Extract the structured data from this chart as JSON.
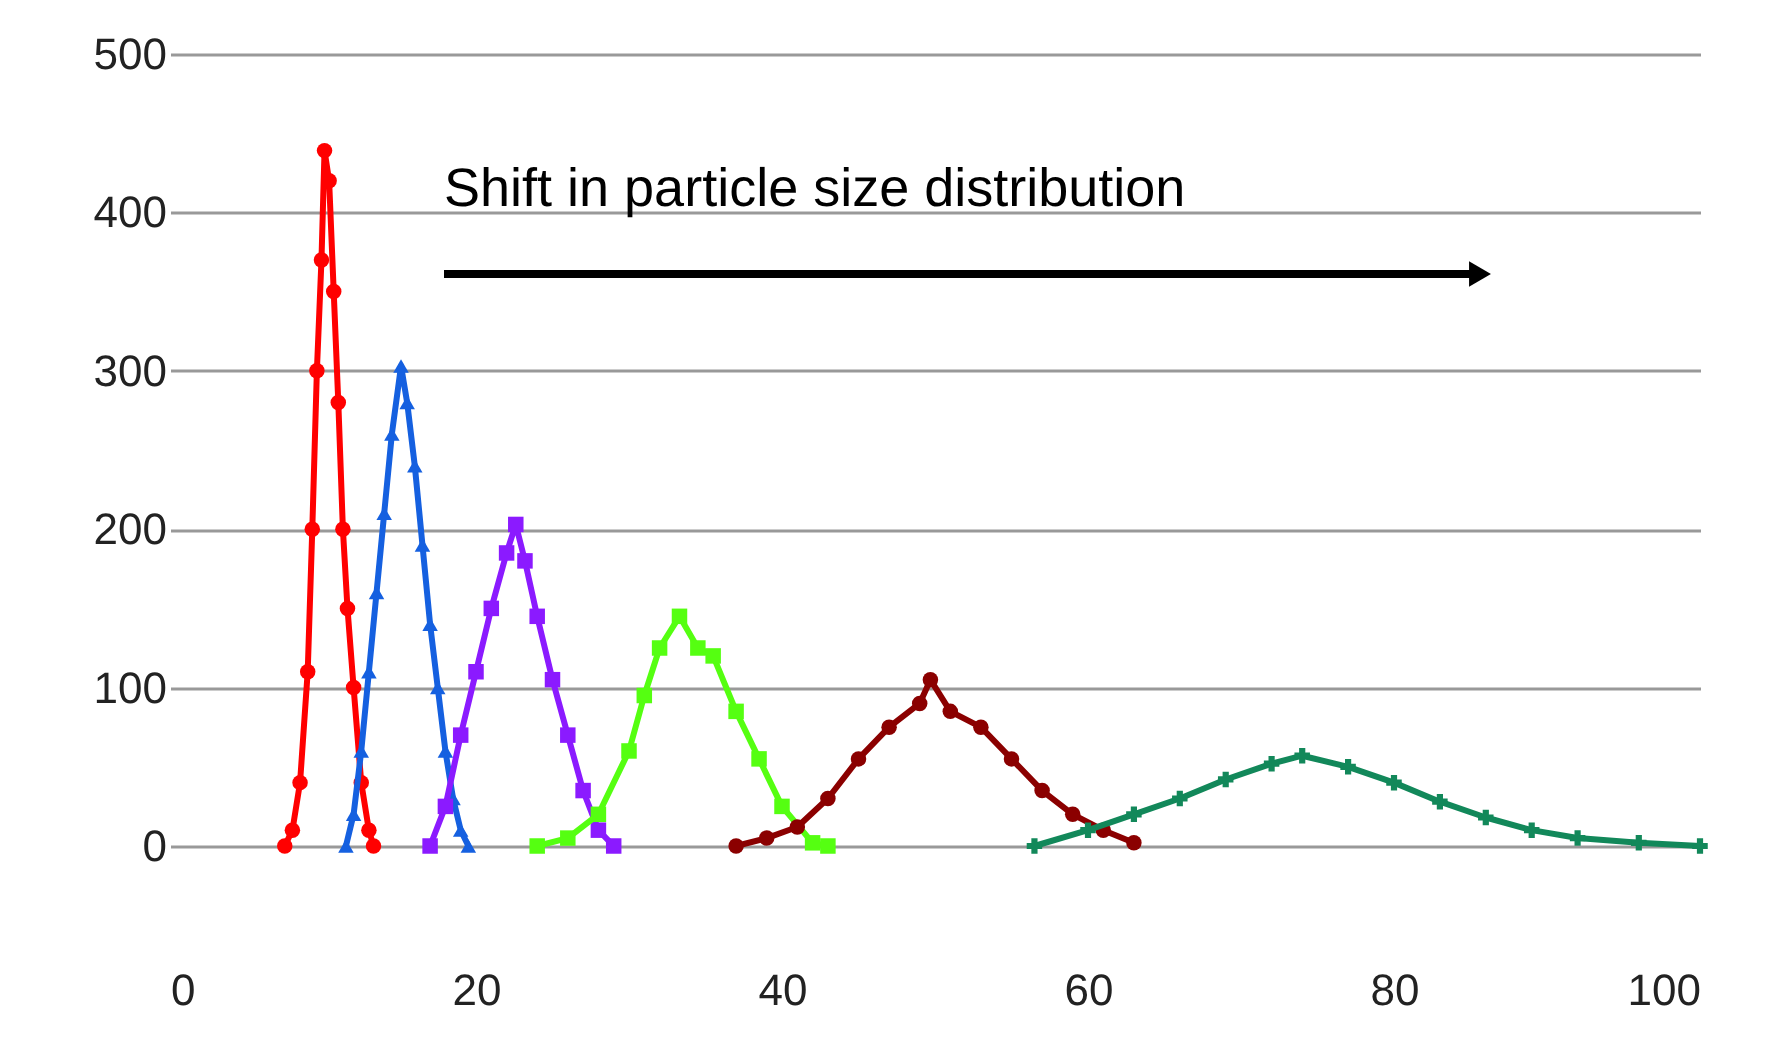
{
  "chart_data": {
    "type": "line",
    "xlim": [
      0,
      100
    ],
    "xticks": [
      0,
      20,
      40,
      60,
      80,
      100
    ],
    "ylim": [
      0,
      500
    ],
    "yticks": [
      0,
      100,
      200,
      300,
      400,
      500
    ],
    "grid": "y",
    "line_style": "solid",
    "annotations": [
      "Shift in particle size distribution"
    ],
    "series": [
      {
        "color": "#ff0000",
        "marker": "circle",
        "x": [
          7.5,
          8,
          8.5,
          9,
          9.3,
          9.6,
          9.9,
          10.1,
          10.4,
          10.7,
          11,
          11.3,
          11.6,
          12,
          12.5,
          13,
          13.3
        ],
        "values": [
          0,
          10,
          40,
          110,
          200,
          300,
          370,
          439,
          420,
          350,
          280,
          200,
          150,
          100,
          40,
          10,
          0
        ]
      },
      {
        "color": "#1560e0",
        "marker": "triangle",
        "x": [
          11.5,
          12,
          12.5,
          13,
          13.5,
          14,
          14.5,
          15.1,
          15.5,
          16,
          16.5,
          17,
          17.5,
          18,
          18.5,
          19,
          19.5
        ],
        "values": [
          0,
          20,
          60,
          110,
          160,
          210,
          260,
          303,
          280,
          240,
          190,
          140,
          100,
          60,
          30,
          10,
          0
        ]
      },
      {
        "color": "#8b1aff",
        "marker": "square",
        "x": [
          17,
          18,
          19,
          20,
          21,
          22,
          22.6,
          23.2,
          24,
          25,
          26,
          27,
          28,
          29
        ],
        "values": [
          0,
          25,
          70,
          110,
          150,
          185,
          203,
          180,
          145,
          105,
          70,
          35,
          10,
          0
        ]
      },
      {
        "color": "#55ff11",
        "marker": "square",
        "x": [
          24,
          26,
          28,
          30,
          31,
          32,
          33.3,
          34.5,
          35.5,
          37,
          38.5,
          40,
          42,
          43
        ],
        "values": [
          0,
          5,
          20,
          60,
          95,
          125,
          145,
          125,
          120,
          85,
          55,
          25,
          2,
          0
        ]
      },
      {
        "color": "#8b0000",
        "marker": "circle",
        "x": [
          37,
          39,
          41,
          43,
          45,
          47,
          49,
          49.7,
          51,
          53,
          55,
          57,
          59,
          61,
          63
        ],
        "values": [
          0,
          5,
          12,
          30,
          55,
          75,
          90,
          105,
          85,
          75,
          55,
          35,
          20,
          10,
          2
        ]
      },
      {
        "color": "#12885a",
        "marker": "cross",
        "x": [
          56.5,
          60,
          63,
          66,
          69,
          72,
          74,
          77,
          80,
          83,
          86,
          89,
          92,
          96,
          100
        ],
        "values": [
          0,
          10,
          20,
          30,
          42,
          52,
          57,
          50,
          40,
          28,
          18,
          10,
          5,
          2,
          0
        ]
      }
    ]
  }
}
